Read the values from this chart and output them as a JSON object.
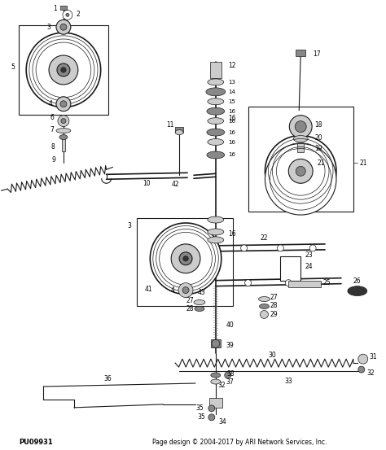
{
  "background_color": "#ffffff",
  "figure_width": 4.74,
  "figure_height": 5.53,
  "dpi": 100,
  "footer_left": "PU09931",
  "footer_right": "Page design © 2004-2017 by ARI Network Services, Inc.",
  "footer_fontsize": 5.5,
  "line_color": "#1a1a1a",
  "gray_fill": "#888888",
  "dark_fill": "#333333",
  "light_fill": "#cccccc",
  "mid_fill": "#666666"
}
